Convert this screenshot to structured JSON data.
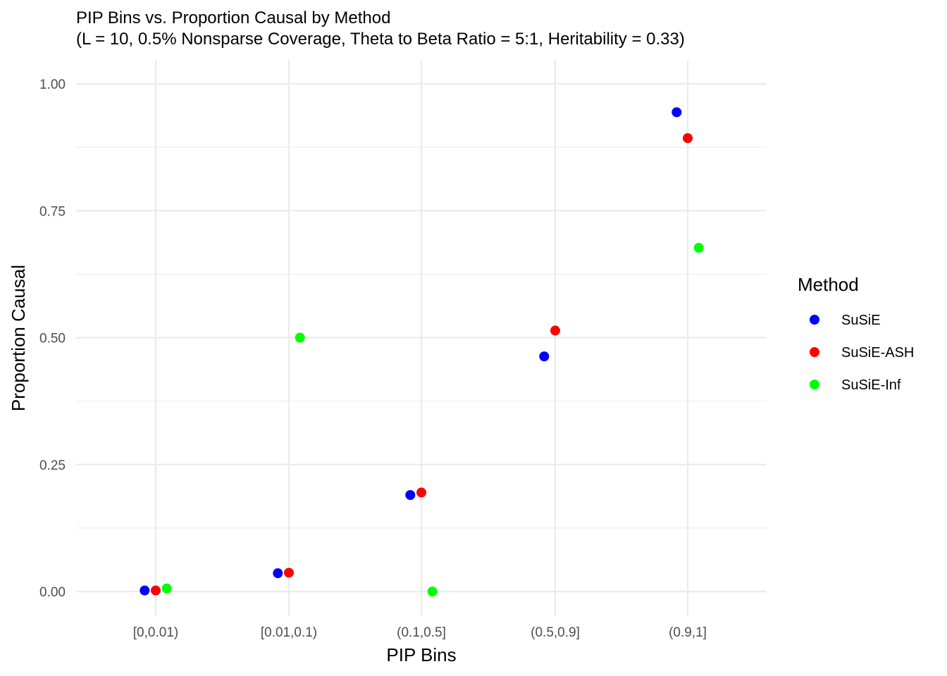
{
  "chart_data": {
    "type": "scatter",
    "title": "PIP Bins vs. Proportion Causal by Method",
    "subtitle": "(L = 10, 0.5% Nonsparse Coverage, Theta to Beta Ratio = 5:1, Heritability = 0.33)",
    "xlabel": "PIP Bins",
    "ylabel": "Proportion Causal",
    "categories": [
      "[0,0.01)",
      "[0.01,0.1)",
      "(0.1,0.5]",
      "(0.5,0.9]",
      "(0.9,1]"
    ],
    "ylim": [
      -0.04,
      1.04
    ],
    "yticks": [
      0.0,
      0.25,
      0.5,
      0.75,
      1.0
    ],
    "ytick_labels": [
      "0.00",
      "0.25",
      "0.50",
      "0.75",
      "1.00"
    ],
    "grid": true,
    "legend": {
      "title": "Method",
      "position": "right"
    },
    "series": [
      {
        "name": "SuSiE",
        "color": "#0000ff",
        "values": [
          0.002,
          0.036,
          0.19,
          0.463,
          0.944
        ]
      },
      {
        "name": "SuSiE-ASH",
        "color": "#ff0000",
        "values": [
          0.002,
          0.037,
          0.195,
          0.514,
          0.893
        ]
      },
      {
        "name": "SuSiE-Inf",
        "color": "#00ff00",
        "values": [
          0.006,
          0.5,
          0.0,
          null,
          0.677
        ]
      }
    ]
  }
}
